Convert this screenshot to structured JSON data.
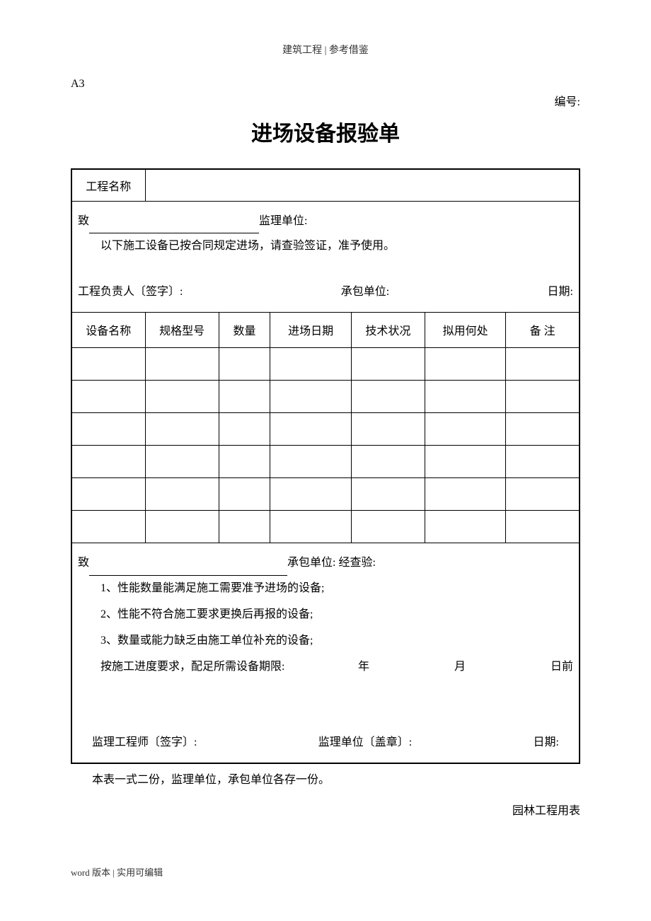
{
  "header": {
    "category": "建筑工程 | 参考借鉴",
    "form_code": "A3",
    "serial_label": "编号:"
  },
  "title": "进场设备报验单",
  "project_name_label": "工程名称",
  "project_name_value": "",
  "section1": {
    "to_prefix": "致",
    "to_suffix": "监理单位:",
    "body": "以下施工设备已按合同规定进场，请查验签证，准予使用。",
    "sign_label": "工程负责人〔签字〕:",
    "contractor_label": "承包单位:",
    "date_label": "日期:"
  },
  "table": {
    "columns": [
      "设备名称",
      "规格型号",
      "数量",
      "进场日期",
      "技术状况",
      "拟用何处",
      "备  注"
    ],
    "col_widths": [
      "100px",
      "100px",
      "70px",
      "110px",
      "100px",
      "110px",
      "100px"
    ],
    "row_count": 6
  },
  "section2": {
    "to_prefix": "致",
    "to_suffix": "承包单位: 经查验:",
    "item1": "1、性能数量能满足施工需要准予进场的设备;",
    "item2": "2、性能不符合施工要求更换后再报的设备;",
    "item3": "3、数量或能力缺乏由施工单位补充的设备;",
    "deadline_prefix": "按施工进度要求，配足所需设备期限:",
    "year": "年",
    "month": "月",
    "day_suffix": "日前",
    "sign_label": "监理工程师〔签字〕:",
    "unit_label": "监理单位〔盖章〕:",
    "date_label": "日期:"
  },
  "footer": {
    "note": "本表一式二份，监理单位，承包单位各存一份。",
    "right_text": "园林工程用表",
    "bottom_left": "word 版本  |  实用可编辑"
  }
}
